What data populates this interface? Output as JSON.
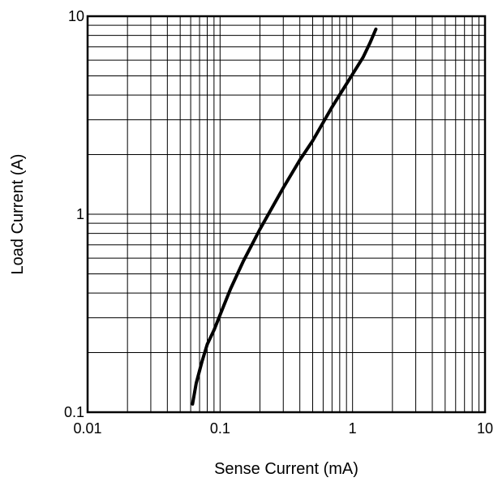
{
  "chart_data": {
    "type": "line",
    "title": "",
    "xlabel": "Sense Current (mA)",
    "ylabel": "Load Current (A)",
    "xscale": "log",
    "yscale": "log",
    "xlim": [
      0.01,
      10
    ],
    "ylim": [
      0.1,
      10
    ],
    "grid": true,
    "x_tick_labels": [
      "0.01",
      "0.1",
      "1",
      "10"
    ],
    "y_tick_labels": [
      "0.1",
      "1",
      "10"
    ],
    "series": [
      {
        "color": "#000000",
        "points": [
          [
            0.062,
            0.11
          ],
          [
            0.066,
            0.14
          ],
          [
            0.073,
            0.18
          ],
          [
            0.08,
            0.22
          ],
          [
            0.09,
            0.26
          ],
          [
            0.1,
            0.31
          ],
          [
            0.12,
            0.42
          ],
          [
            0.15,
            0.58
          ],
          [
            0.2,
            0.84
          ],
          [
            0.3,
            1.36
          ],
          [
            0.4,
            1.88
          ],
          [
            0.5,
            2.35
          ],
          [
            0.7,
            3.48
          ],
          [
            1.0,
            5.1
          ],
          [
            1.2,
            6.2
          ],
          [
            1.35,
            7.3
          ],
          [
            1.5,
            8.6
          ]
        ]
      }
    ]
  }
}
